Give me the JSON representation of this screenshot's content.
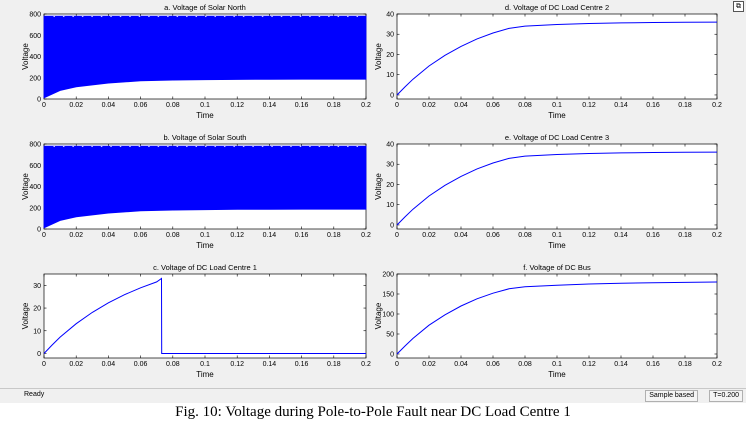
{
  "caption": "Fig. 10: Voltage during Pole-to-Pole Fault near DC Load Centre 1",
  "status": {
    "left": "Ready",
    "sample": "Sample based",
    "time": "T=0.200"
  },
  "colors": {
    "series": "#0000ff",
    "axes_bg": "#ffffff",
    "window_bg": "#f0f0f0"
  },
  "chart_data": [
    {
      "type": "area",
      "title": "a. Voltage of Solar North",
      "xlabel": "Time",
      "ylabel": "Voltage",
      "xlim": [
        0,
        0.2
      ],
      "ylim": [
        0,
        800
      ],
      "xticks": [
        "0",
        "0.02",
        "0.04",
        "0.06",
        "0.08",
        "0.1",
        "0.12",
        "0.14",
        "0.16",
        "0.18",
        "0.2"
      ],
      "yticks": [
        "0",
        "200",
        "400",
        "600",
        "800"
      ],
      "series": [
        {
          "x": [
            0,
            0.01,
            0.02,
            0.04,
            0.06,
            0.08,
            0.1,
            0.12,
            0.14,
            0.16,
            0.18,
            0.2
          ],
          "upper": [
            780,
            780,
            780,
            780,
            780,
            780,
            780,
            780,
            780,
            780,
            780,
            780
          ],
          "lower": [
            10,
            80,
            115,
            150,
            170,
            178,
            182,
            184,
            185,
            186,
            186,
            186
          ]
        }
      ]
    },
    {
      "type": "area",
      "title": "b. Voltage of Solar South",
      "xlabel": "Time",
      "ylabel": "Voltage",
      "xlim": [
        0,
        0.2
      ],
      "ylim": [
        0,
        800
      ],
      "xticks": [
        "0",
        "0.02",
        "0.04",
        "0.06",
        "0.08",
        "0.1",
        "0.12",
        "0.14",
        "0.16",
        "0.18",
        "0.2"
      ],
      "yticks": [
        "0",
        "200",
        "400",
        "600",
        "800"
      ],
      "series": [
        {
          "x": [
            0,
            0.01,
            0.02,
            0.04,
            0.06,
            0.08,
            0.1,
            0.12,
            0.14,
            0.16,
            0.18,
            0.2
          ],
          "upper": [
            780,
            780,
            780,
            780,
            780,
            780,
            780,
            780,
            780,
            780,
            780,
            780
          ],
          "lower": [
            10,
            80,
            115,
            150,
            170,
            178,
            182,
            184,
            185,
            186,
            186,
            186
          ]
        }
      ]
    },
    {
      "type": "line",
      "title": "c. Voltage of DC Load Centre 1",
      "xlabel": "Time",
      "ylabel": "Voltage",
      "xlim": [
        0,
        0.2
      ],
      "ylim": [
        -2,
        35
      ],
      "xticks": [
        "0",
        "0.02",
        "0.04",
        "0.06",
        "0.08",
        "0.1",
        "0.12",
        "0.14",
        "0.16",
        "0.18",
        "0.2"
      ],
      "yticks": [
        "0",
        "10",
        "20",
        "30"
      ],
      "series": [
        {
          "x": [
            0,
            0.005,
            0.01,
            0.02,
            0.03,
            0.04,
            0.05,
            0.06,
            0.07,
            0.073,
            0.0731,
            0.08,
            0.1,
            0.12,
            0.14,
            0.16,
            0.18,
            0.2
          ],
          "y": [
            0,
            3.7,
            7.2,
            13.1,
            18.1,
            22.3,
            25.9,
            28.9,
            31.5,
            33.0,
            0,
            0,
            0,
            0,
            0,
            0,
            0,
            0
          ]
        }
      ]
    },
    {
      "type": "line",
      "title": "d. Voltage of DC Load Centre 2",
      "xlabel": "Time",
      "ylabel": "Voltage",
      "xlim": [
        0,
        0.2
      ],
      "ylim": [
        -2,
        40
      ],
      "xticks": [
        "0",
        "0.02",
        "0.04",
        "0.06",
        "0.08",
        "0.1",
        "0.12",
        "0.14",
        "0.16",
        "0.18",
        "0.2"
      ],
      "yticks": [
        "0",
        "10",
        "20",
        "30",
        "40"
      ],
      "series": [
        {
          "x": [
            0,
            0.005,
            0.01,
            0.02,
            0.03,
            0.04,
            0.05,
            0.06,
            0.07,
            0.08,
            0.1,
            0.12,
            0.14,
            0.16,
            0.18,
            0.2
          ],
          "y": [
            0,
            4,
            7.8,
            14.3,
            19.6,
            24,
            27.7,
            30.6,
            32.9,
            34,
            34.8,
            35.3,
            35.6,
            35.8,
            35.9,
            36
          ]
        }
      ]
    },
    {
      "type": "line",
      "title": "e. Voltage of DC Load Centre 3",
      "xlabel": "Time",
      "ylabel": "Voltage",
      "xlim": [
        0,
        0.2
      ],
      "ylim": [
        -2,
        40
      ],
      "xticks": [
        "0",
        "0.02",
        "0.04",
        "0.06",
        "0.08",
        "0.1",
        "0.12",
        "0.14",
        "0.16",
        "0.18",
        "0.2"
      ],
      "yticks": [
        "0",
        "10",
        "20",
        "30",
        "40"
      ],
      "series": [
        {
          "x": [
            0,
            0.005,
            0.01,
            0.02,
            0.03,
            0.04,
            0.05,
            0.06,
            0.07,
            0.08,
            0.1,
            0.12,
            0.14,
            0.16,
            0.18,
            0.2
          ],
          "y": [
            0,
            4,
            7.8,
            14.3,
            19.6,
            24,
            27.7,
            30.6,
            32.9,
            34,
            34.8,
            35.3,
            35.6,
            35.8,
            35.9,
            36
          ]
        }
      ]
    },
    {
      "type": "line",
      "title": "f. Voltage of DC Bus",
      "xlabel": "Time",
      "ylabel": "Voltage",
      "xlim": [
        0,
        0.2
      ],
      "ylim": [
        -10,
        200
      ],
      "xticks": [
        "0",
        "0.02",
        "0.04",
        "0.06",
        "0.08",
        "0.1",
        "0.12",
        "0.14",
        "0.16",
        "0.18",
        "0.2"
      ],
      "yticks": [
        "0",
        "50",
        "100",
        "150",
        "200"
      ],
      "series": [
        {
          "x": [
            0,
            0.005,
            0.01,
            0.02,
            0.03,
            0.04,
            0.05,
            0.06,
            0.07,
            0.08,
            0.1,
            0.12,
            0.14,
            0.16,
            0.18,
            0.2
          ],
          "y": [
            0,
            20,
            39,
            72,
            98,
            120,
            138,
            152,
            163,
            168,
            172,
            175,
            177,
            178,
            179,
            180
          ]
        }
      ]
    }
  ]
}
